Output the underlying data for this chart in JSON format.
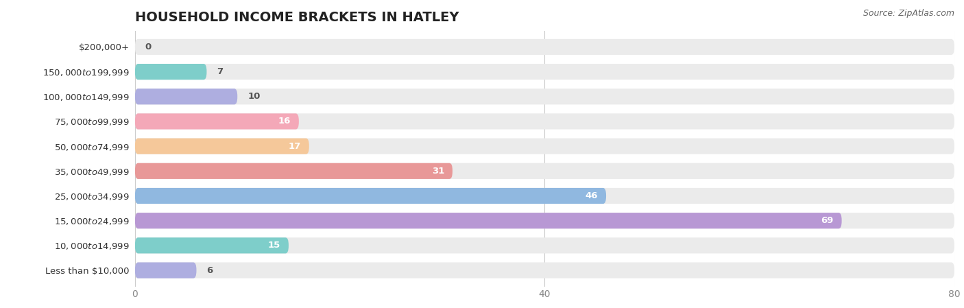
{
  "title": "HOUSEHOLD INCOME BRACKETS IN HATLEY",
  "source": "Source: ZipAtlas.com",
  "categories": [
    "Less than $10,000",
    "$10,000 to $14,999",
    "$15,000 to $24,999",
    "$25,000 to $34,999",
    "$35,000 to $49,999",
    "$50,000 to $74,999",
    "$75,000 to $99,999",
    "$100,000 to $149,999",
    "$150,000 to $199,999",
    "$200,000+"
  ],
  "values": [
    0,
    7,
    10,
    16,
    17,
    31,
    46,
    69,
    15,
    6
  ],
  "bar_colors": [
    "#d4a8c8",
    "#7ececa",
    "#aeaee0",
    "#f4a8b8",
    "#f5c89a",
    "#e89898",
    "#90b8e0",
    "#b898d4",
    "#7ececa",
    "#aeaee0"
  ],
  "xlim": [
    0,
    80
  ],
  "xticks": [
    0,
    40,
    80
  ],
  "bar_background_color": "#ebebeb",
  "title_fontsize": 14,
  "label_fontsize": 9.5,
  "tick_fontsize": 10,
  "source_fontsize": 9,
  "bar_height": 0.64,
  "value_label_color_inside": "#ffffff",
  "value_label_color_outside": "#555555",
  "inside_threshold": 12
}
